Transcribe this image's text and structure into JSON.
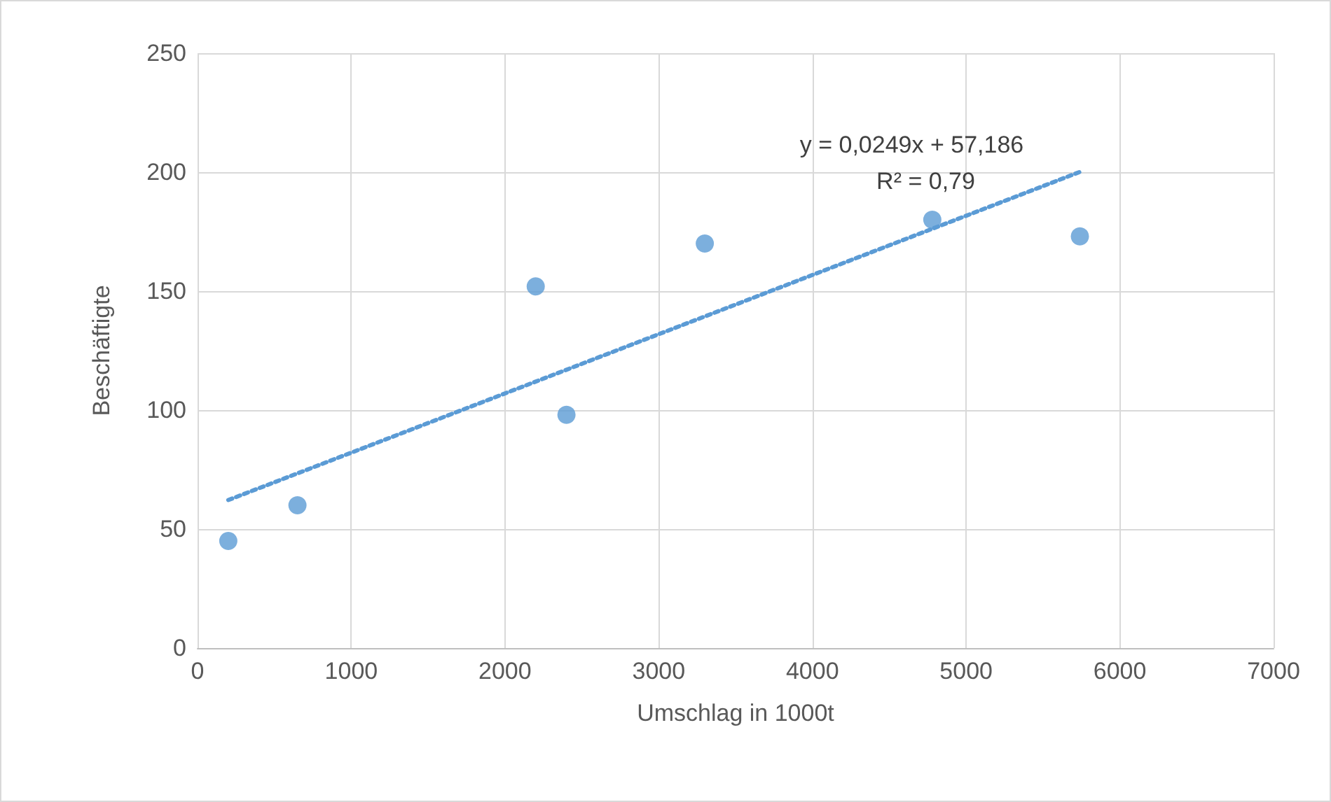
{
  "chart_data": {
    "type": "scatter",
    "xlabel": "Umschlag in 1000t",
    "ylabel": "Beschäftigte",
    "annotations": [
      "y = 0,0249x + 57,186",
      "R² = 0,79"
    ],
    "series": [
      {
        "type": "scatter",
        "color": "#5b9bd5",
        "marker": "circle",
        "x": [
          200,
          650,
          2200,
          2400,
          3300,
          4780,
          5740
        ],
        "values": [
          45,
          60,
          152,
          98,
          170,
          180,
          173
        ]
      },
      {
        "type": "line",
        "color": "#5b9bd5",
        "marker": "none",
        "line_style": "dotted",
        "x": [
          200,
          5740
        ],
        "values": [
          62.2,
          200.1
        ]
      }
    ],
    "xlim": [
      0,
      7000
    ],
    "xticks": [
      0,
      1000,
      2000,
      3000,
      4000,
      5000,
      6000,
      7000
    ],
    "ylim": [
      0,
      250
    ],
    "yticks": [
      0,
      50,
      100,
      150,
      200,
      250
    ],
    "grid": true
  }
}
